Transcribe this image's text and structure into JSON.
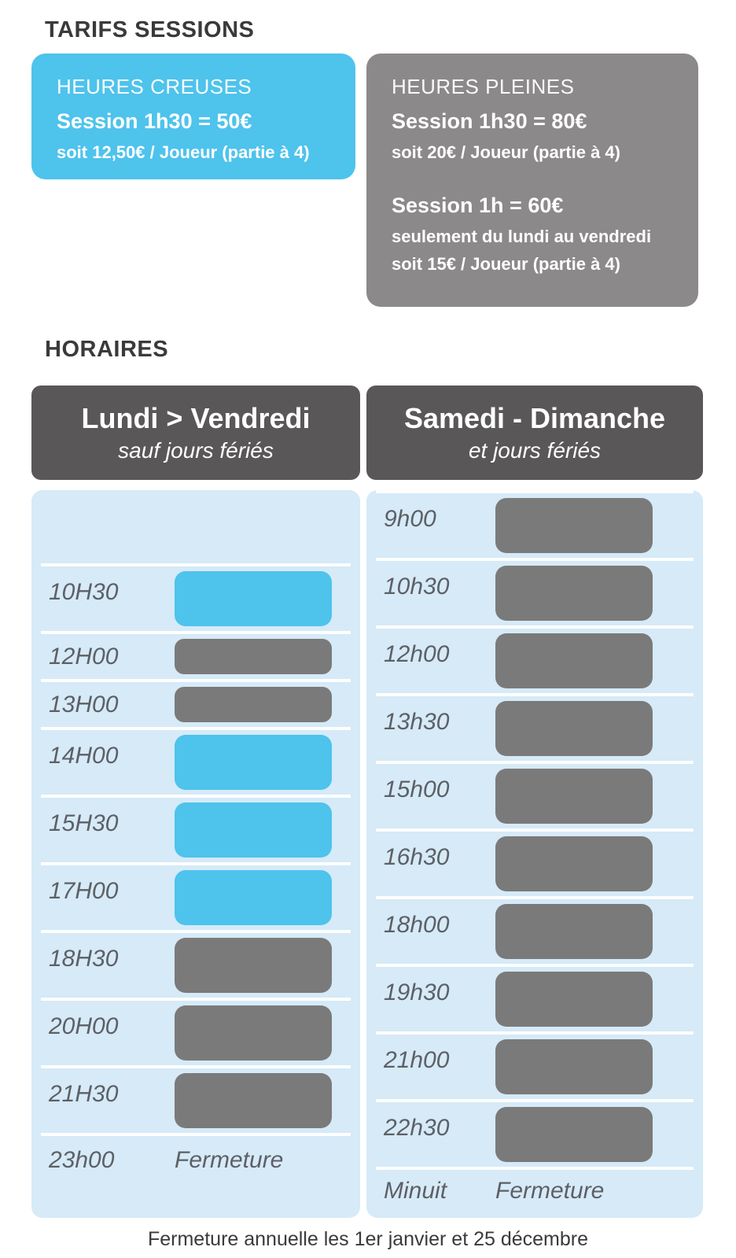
{
  "page": {
    "title": "TARIFS SESSIONS",
    "footer": "Fermeture annuelle les 1er janvier et 25 décembre"
  },
  "colors": {
    "accent_blue": "#4EC3EC",
    "panel_blue": "#D6EAF8",
    "card_gray": "#8B8989",
    "header_gray": "#595757",
    "bar_gray": "#7B7A7A",
    "title_text": "#3B3A3A",
    "time_text": "#5D6065"
  },
  "tarifs": {
    "off_peak": {
      "label": "HEURES CREUSES",
      "price_main": "Session 1h30 = 50€",
      "price_detail": "soit 12,50€ / Joueur (partie à 4)"
    },
    "peak": {
      "label": "HEURES PLEINES",
      "price_main": "Session 1h30 = 80€",
      "price_detail": "soit 20€ / Joueur (partie à 4)",
      "price_main_2": "Session 1h = 60€",
      "price_note_2": "seulement du lundi au vendredi",
      "price_detail_2": "soit 15€ / Joueur (partie à 4)"
    }
  },
  "horaires": {
    "title": "HORAIRES",
    "weekday": {
      "header": "Lundi > Vendredi",
      "subheader": "sauf jours fériés",
      "rows": [
        {
          "type": "empty"
        },
        {
          "type": "bar",
          "time": "10H30",
          "color": "blue",
          "duration": "1h30"
        },
        {
          "type": "bar",
          "time": "12H00",
          "color": "gray",
          "duration": "1h"
        },
        {
          "type": "bar",
          "time": "13H00",
          "color": "gray",
          "duration": "1h"
        },
        {
          "type": "bar",
          "time": "14H00",
          "color": "blue",
          "duration": "1h30"
        },
        {
          "type": "bar",
          "time": "15H30",
          "color": "blue",
          "duration": "1h30"
        },
        {
          "type": "bar",
          "time": "17H00",
          "color": "blue",
          "duration": "1h30"
        },
        {
          "type": "bar",
          "time": "18H30",
          "color": "gray",
          "duration": "1h30"
        },
        {
          "type": "bar",
          "time": "20H00",
          "color": "gray",
          "duration": "1h30"
        },
        {
          "type": "bar",
          "time": "21H30",
          "color": "gray",
          "duration": "1h30"
        },
        {
          "type": "closure",
          "time": "23h00",
          "label": "Fermeture"
        }
      ]
    },
    "weekend": {
      "header": "Samedi - Dimanche",
      "subheader": "et jours fériés",
      "rows": [
        {
          "type": "bar",
          "time": "9h00",
          "color": "gray",
          "duration": "1h30"
        },
        {
          "type": "bar",
          "time": "10h30",
          "color": "gray",
          "duration": "1h30"
        },
        {
          "type": "bar",
          "time": "12h00",
          "color": "gray",
          "duration": "1h30"
        },
        {
          "type": "bar",
          "time": "13h30",
          "color": "gray",
          "duration": "1h30"
        },
        {
          "type": "bar",
          "time": "15h00",
          "color": "gray",
          "duration": "1h30"
        },
        {
          "type": "bar",
          "time": "16h30",
          "color": "gray",
          "duration": "1h30"
        },
        {
          "type": "bar",
          "time": "18h00",
          "color": "gray",
          "duration": "1h30"
        },
        {
          "type": "bar",
          "time": "19h30",
          "color": "gray",
          "duration": "1h30"
        },
        {
          "type": "bar",
          "time": "21h00",
          "color": "gray",
          "duration": "1h30"
        },
        {
          "type": "bar",
          "time": "22h30",
          "color": "gray",
          "duration": "1h30"
        },
        {
          "type": "closure",
          "time": "Minuit",
          "label": "Fermeture"
        }
      ]
    }
  }
}
